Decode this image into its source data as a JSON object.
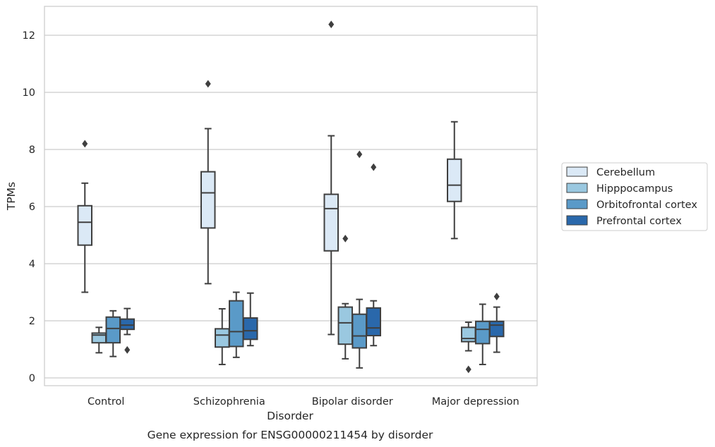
{
  "chart_data": {
    "type": "box",
    "xlabel": "Disorder",
    "ylabel": "TPMs",
    "caption": "Gene expression for ENSG00000211454 by disorder",
    "ylim": [
      -0.3,
      13
    ],
    "yticks": [
      0,
      2,
      4,
      6,
      8,
      10,
      12
    ],
    "grid": "horizontal",
    "legend_position": "right",
    "categories": [
      "Control",
      "Schizophrenia",
      "Bipolar disorder",
      "Major depression"
    ],
    "series": [
      {
        "name": "Cerebellum",
        "color": "#dbe9f6",
        "boxes": [
          {
            "whisker_low": 3.0,
            "q1": 4.65,
            "median": 5.45,
            "q3": 6.03,
            "whisker_high": 6.82,
            "outliers": [
              8.2
            ]
          },
          {
            "whisker_low": 3.3,
            "q1": 5.25,
            "median": 6.48,
            "q3": 7.22,
            "whisker_high": 8.73,
            "outliers": [
              10.3
            ]
          },
          {
            "whisker_low": 1.52,
            "q1": 4.45,
            "median": 5.93,
            "q3": 6.43,
            "whisker_high": 8.48,
            "outliers": [
              12.38
            ]
          },
          {
            "whisker_low": 4.88,
            "q1": 6.18,
            "median": 6.75,
            "q3": 7.66,
            "whisker_high": 8.97,
            "outliers": []
          }
        ]
      },
      {
        "name": "Hipppocampus",
        "color": "#9ac8e0",
        "boxes": [
          {
            "whisker_low": 0.88,
            "q1": 1.23,
            "median": 1.5,
            "q3": 1.57,
            "whisker_high": 1.77,
            "outliers": []
          },
          {
            "whisker_low": 0.47,
            "q1": 1.08,
            "median": 1.5,
            "q3": 1.72,
            "whisker_high": 2.42,
            "outliers": []
          },
          {
            "whisker_low": 0.67,
            "q1": 1.18,
            "median": 1.93,
            "q3": 2.48,
            "whisker_high": 2.6,
            "outliers": [
              4.88
            ]
          },
          {
            "whisker_low": 0.95,
            "q1": 1.27,
            "median": 1.38,
            "q3": 1.77,
            "whisker_high": 1.95,
            "outliers": [
              0.3
            ]
          }
        ]
      },
      {
        "name": "Orbitofrontal cortex",
        "color": "#5a9ac8",
        "boxes": [
          {
            "whisker_low": 0.75,
            "q1": 1.23,
            "median": 1.73,
            "q3": 2.13,
            "whisker_high": 2.35,
            "outliers": []
          },
          {
            "whisker_low": 0.72,
            "q1": 1.1,
            "median": 1.62,
            "q3": 2.7,
            "whisker_high": 3.0,
            "outliers": []
          },
          {
            "whisker_low": 0.35,
            "q1": 1.05,
            "median": 1.47,
            "q3": 2.23,
            "whisker_high": 2.75,
            "outliers": [
              7.83
            ]
          },
          {
            "whisker_low": 0.47,
            "q1": 1.2,
            "median": 1.7,
            "q3": 1.98,
            "whisker_high": 2.58,
            "outliers": []
          }
        ]
      },
      {
        "name": "Prefrontal cortex",
        "color": "#2a68ab",
        "boxes": [
          {
            "whisker_low": 1.52,
            "q1": 1.7,
            "median": 1.85,
            "q3": 2.06,
            "whisker_high": 2.43,
            "outliers": [
              0.98
            ]
          },
          {
            "whisker_low": 1.13,
            "q1": 1.35,
            "median": 1.65,
            "q3": 2.1,
            "whisker_high": 2.97,
            "outliers": []
          },
          {
            "whisker_low": 1.13,
            "q1": 1.48,
            "median": 1.75,
            "q3": 2.45,
            "whisker_high": 2.7,
            "outliers": [
              7.38
            ]
          },
          {
            "whisker_low": 0.9,
            "q1": 1.45,
            "median": 1.85,
            "q3": 1.98,
            "whisker_high": 2.48,
            "outliers": [
              2.85
            ]
          }
        ]
      }
    ]
  }
}
